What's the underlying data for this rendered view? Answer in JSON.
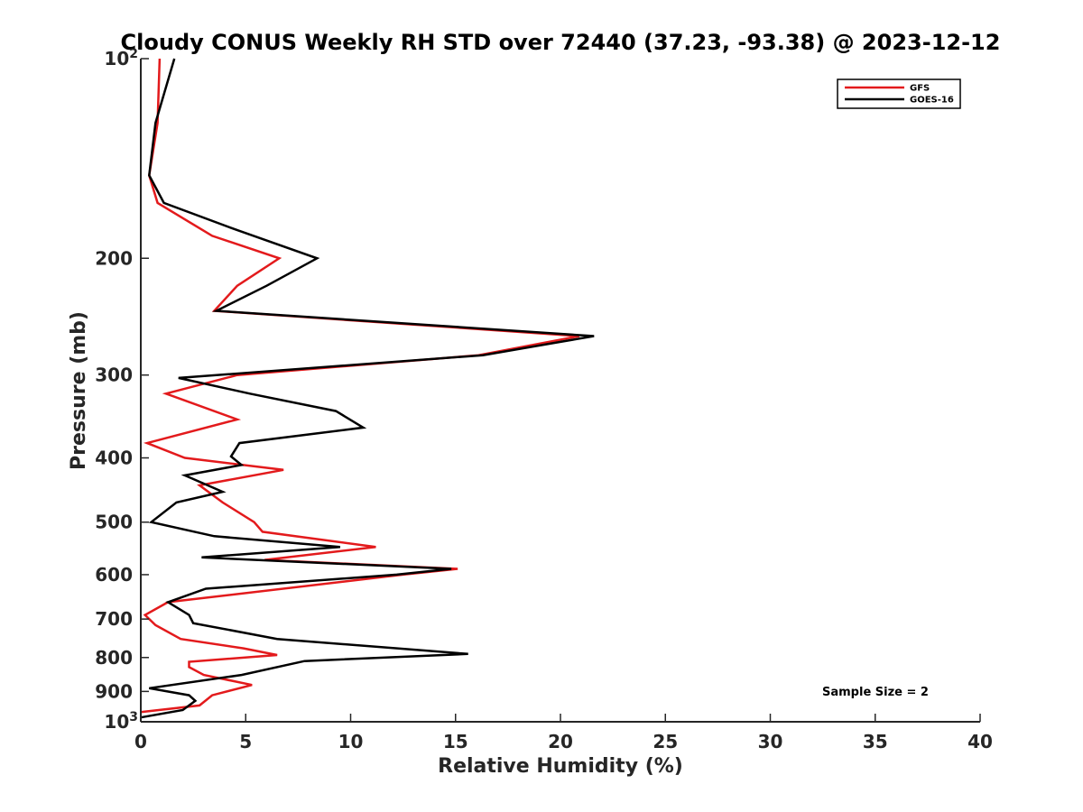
{
  "chart_data": {
    "type": "line",
    "title": "Cloudy CONUS Weekly RH STD over 72440 (37.23, -93.38) @ 2023-12-12",
    "xlabel": "Relative Humidity (%)",
    "ylabel": "Pressure (mb)",
    "xlim": [
      0,
      40
    ],
    "ylim": [
      100,
      1000
    ],
    "y_scale": "log",
    "y_reversed": true,
    "x_ticks": [
      "0",
      "5",
      "10",
      "15",
      "20",
      "25",
      "30",
      "35",
      "40"
    ],
    "y_ticks": [
      {
        "value": 100,
        "label": "10",
        "sup": "2"
      },
      {
        "value": 200,
        "label": "200",
        "sup": ""
      },
      {
        "value": 300,
        "label": "300",
        "sup": ""
      },
      {
        "value": 400,
        "label": "400",
        "sup": ""
      },
      {
        "value": 500,
        "label": "500",
        "sup": ""
      },
      {
        "value": 600,
        "label": "600",
        "sup": ""
      },
      {
        "value": 700,
        "label": "700",
        "sup": ""
      },
      {
        "value": 800,
        "label": "800",
        "sup": ""
      },
      {
        "value": 900,
        "label": "900",
        "sup": ""
      },
      {
        "value": 1000,
        "label": "10",
        "sup": "3"
      }
    ],
    "grid": false,
    "legend_position": "top-right",
    "annotation": "Sample Size = 2",
    "series": [
      {
        "name": "GFS",
        "color": "#e31a1c",
        "x": [
          0.9,
          0.8,
          0.4,
          0.8,
          3.4,
          6.6,
          4.6,
          3.5,
          20.9,
          16.1,
          4.6,
          1.2,
          4.6,
          0.3,
          2.1,
          6.8,
          2.8,
          3.9,
          5.4,
          5.8,
          11.2,
          5.9,
          15.1,
          12.5,
          1.3,
          0.2,
          0.7,
          1.9,
          4.9,
          6.5,
          2.3,
          2.3,
          3.0,
          5.3,
          3.4,
          2.8,
          0.0
        ],
        "y": [
          100,
          125,
          150,
          165,
          185,
          200,
          220,
          240,
          262,
          280,
          300,
          320,
          350,
          380,
          400,
          417,
          440,
          467,
          500,
          517,
          545,
          570,
          588,
          600,
          660,
          690,
          715,
          750,
          775,
          793,
          812,
          827,
          850,
          880,
          912,
          945,
          967
        ]
      },
      {
        "name": "GOES-16",
        "color": "#000000",
        "x": [
          1.6,
          0.7,
          0.4,
          1.1,
          4.3,
          8.4,
          6.0,
          3.6,
          21.6,
          16.3,
          1.8,
          5.2,
          9.3,
          10.6,
          4.7,
          4.3,
          4.8,
          2.1,
          3.9,
          1.7,
          0.5,
          3.5,
          9.5,
          2.9,
          14.8,
          12.2,
          3.1,
          1.3,
          2.3,
          2.5,
          6.5,
          15.6,
          7.8,
          4.8,
          0.4,
          2.3,
          2.6,
          2.0,
          0.0
        ],
        "y": [
          100,
          125,
          150,
          165,
          180,
          200,
          220,
          240,
          262,
          280,
          303,
          320,
          340,
          360,
          380,
          398,
          410,
          425,
          450,
          467,
          500,
          525,
          545,
          565,
          588,
          600,
          630,
          660,
          690,
          710,
          750,
          790,
          810,
          850,
          890,
          912,
          930,
          960,
          985
        ]
      }
    ]
  }
}
